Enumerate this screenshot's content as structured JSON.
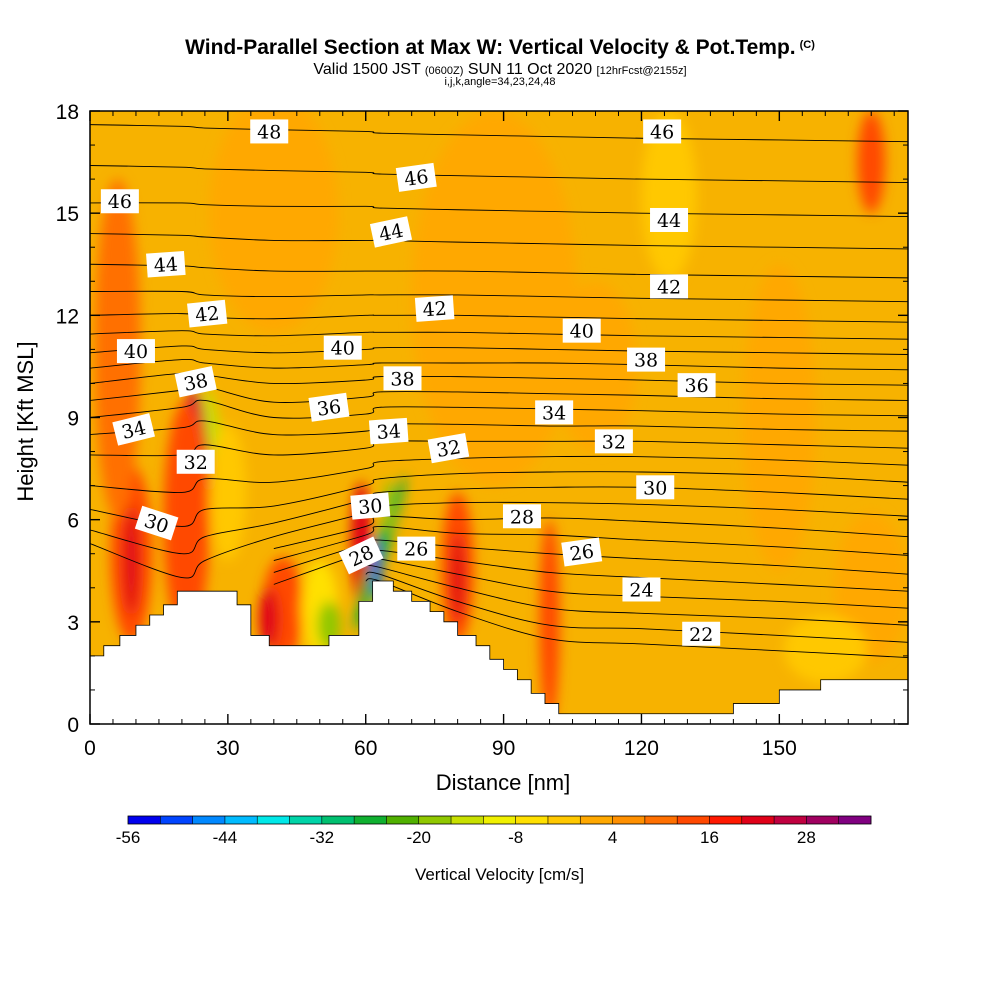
{
  "header": {
    "title": "Wind-Parallel Section at Max W: Vertical Velocity & Pot.Temp.",
    "title_units": "(C)",
    "valid_prefix": "Valid 1500 JST",
    "valid_utc": "(0600Z)",
    "valid_date": "SUN 11 Oct 2020",
    "valid_fcst": "[12hrFcst@2155z]",
    "params": "i,j,k,angle=34,23,24,48"
  },
  "chart_data": {
    "type": "heatmap",
    "xlabel": "Distance [nm]",
    "ylabel": "Height [Kft MSL]",
    "xlim": [
      0,
      178
    ],
    "ylim": [
      0,
      18
    ],
    "x_ticks": [
      0,
      30,
      60,
      90,
      120,
      150
    ],
    "y_ticks": [
      0,
      3,
      6,
      9,
      12,
      15,
      18
    ],
    "background_fill_color": "#f7b200",
    "colorbar": {
      "title": "Vertical Velocity [cm/s]",
      "min": -56,
      "max": 36,
      "step": 4,
      "tick_labels": [
        "-56",
        "-44",
        "-32",
        "-20",
        "-8",
        "4",
        "16",
        "28"
      ],
      "colors": [
        "#0000ee",
        "#0044ff",
        "#0088ff",
        "#00bbff",
        "#00e8e8",
        "#00d4a8",
        "#00c070",
        "#10b030",
        "#50b000",
        "#90c800",
        "#c8e000",
        "#f0f000",
        "#ffe000",
        "#ffc800",
        "#ffa800",
        "#ff9000",
        "#ff7000",
        "#ff4800",
        "#ff1800",
        "#e00018",
        "#c00040",
        "#a00060",
        "#800080"
      ]
    },
    "terrain": [
      [
        0,
        2
      ],
      [
        3,
        2
      ],
      [
        3,
        2.3
      ],
      [
        6.5,
        2.3
      ],
      [
        6.5,
        2.6
      ],
      [
        10,
        2.6
      ],
      [
        10,
        2.9
      ],
      [
        13,
        2.9
      ],
      [
        13,
        3.2
      ],
      [
        16,
        3.2
      ],
      [
        16,
        3.5
      ],
      [
        19,
        3.5
      ],
      [
        19,
        3.9
      ],
      [
        32,
        3.9
      ],
      [
        32,
        3.5
      ],
      [
        35,
        3.5
      ],
      [
        35,
        2.6
      ],
      [
        39,
        2.6
      ],
      [
        39,
        2.3
      ],
      [
        52,
        2.3
      ],
      [
        52,
        2.6
      ],
      [
        58.5,
        2.6
      ],
      [
        58.5,
        3.6
      ],
      [
        61.5,
        3.6
      ],
      [
        61.5,
        4.2
      ],
      [
        66,
        4.2
      ],
      [
        66,
        3.9
      ],
      [
        70,
        3.9
      ],
      [
        70,
        3.6
      ],
      [
        74,
        3.6
      ],
      [
        74,
        3.3
      ],
      [
        77,
        3.3
      ],
      [
        77,
        3
      ],
      [
        80,
        3
      ],
      [
        80,
        2.6
      ],
      [
        84,
        2.6
      ],
      [
        84,
        2.3
      ],
      [
        87,
        2.3
      ],
      [
        87,
        1.9
      ],
      [
        90,
        1.9
      ],
      [
        90,
        1.6
      ],
      [
        93,
        1.6
      ],
      [
        93,
        1.3
      ],
      [
        96,
        1.3
      ],
      [
        96,
        0.9
      ],
      [
        99,
        0.9
      ],
      [
        99,
        0.6
      ],
      [
        102,
        0.6
      ],
      [
        102,
        0.3
      ],
      [
        140,
        0.3
      ],
      [
        140,
        0.6
      ],
      [
        150,
        0.6
      ],
      [
        150,
        1
      ],
      [
        159,
        1
      ],
      [
        159,
        1.3
      ],
      [
        178,
        1.3
      ],
      [
        178,
        0
      ],
      [
        0,
        0
      ]
    ],
    "theta_contours": {
      "levels": [
        22,
        23,
        24,
        25,
        26,
        27,
        28,
        29,
        30,
        31,
        32,
        33,
        34,
        35,
        36,
        37,
        38,
        39,
        40,
        41,
        42,
        43,
        44,
        45,
        46,
        47,
        48
      ],
      "x": [
        0,
        20,
        25,
        40,
        60,
        63,
        80,
        100,
        120,
        150,
        178
      ],
      "heights": [
        [
          null,
          null,
          null,
          null,
          4.2,
          4.2,
          3.3,
          2.5,
          2.35,
          2.15,
          1.95
        ],
        [
          null,
          null,
          null,
          null,
          4.4,
          4.4,
          3.6,
          2.9,
          2.8,
          2.6,
          2.4
        ],
        [
          null,
          null,
          null,
          null,
          4.65,
          4.6,
          4.0,
          3.4,
          3.25,
          3.1,
          2.9
        ],
        [
          null,
          null,
          null,
          null,
          4.9,
          4.85,
          4.4,
          3.9,
          3.75,
          3.6,
          3.4
        ],
        [
          null,
          null,
          null,
          4.1,
          5.05,
          5.1,
          4.8,
          4.45,
          4.3,
          4.1,
          3.9
        ],
        [
          null,
          null,
          null,
          4.45,
          5.3,
          5.4,
          5.2,
          5.0,
          4.85,
          4.65,
          4.4
        ],
        [
          null,
          null,
          null,
          4.8,
          5.55,
          5.8,
          5.6,
          5.55,
          5.4,
          5.2,
          4.95
        ],
        [
          null,
          null,
          null,
          5.15,
          5.8,
          6.1,
          6.0,
          6.05,
          5.95,
          5.75,
          5.5
        ],
        [
          5.3,
          4.3,
          4.8,
          5.5,
          6.2,
          6.4,
          6.5,
          6.5,
          6.45,
          6.3,
          6.1
        ],
        [
          5.7,
          5.0,
          5.5,
          5.9,
          6.6,
          6.8,
          6.9,
          6.95,
          6.95,
          6.8,
          6.6
        ],
        [
          6.3,
          5.8,
          6.3,
          6.4,
          7.0,
          7.2,
          7.35,
          7.4,
          7.4,
          7.3,
          7.1
        ],
        [
          7.0,
          6.8,
          7.2,
          7.1,
          7.5,
          7.7,
          7.8,
          7.85,
          7.85,
          7.75,
          7.6
        ],
        [
          7.9,
          7.9,
          8.2,
          7.9,
          8.1,
          8.3,
          8.3,
          8.3,
          8.3,
          8.2,
          8.1
        ],
        [
          8.5,
          8.7,
          8.9,
          8.5,
          8.6,
          8.8,
          8.8,
          8.75,
          8.75,
          8.65,
          8.6
        ],
        [
          9.0,
          9.3,
          9.5,
          9.0,
          9.1,
          9.3,
          9.3,
          9.25,
          9.2,
          9.1,
          9.05
        ],
        [
          9.5,
          9.8,
          9.9,
          9.45,
          9.6,
          9.75,
          9.75,
          9.7,
          9.65,
          9.55,
          9.5
        ],
        [
          10.0,
          10.3,
          10.25,
          10.0,
          10.1,
          10.2,
          10.2,
          10.15,
          10.1,
          10.0,
          9.95
        ],
        [
          10.45,
          10.7,
          10.6,
          10.45,
          10.55,
          10.6,
          10.6,
          10.6,
          10.55,
          10.45,
          10.4
        ],
        [
          10.9,
          11.1,
          11.0,
          10.9,
          11.0,
          11.05,
          11.05,
          11.0,
          10.95,
          10.9,
          10.85
        ],
        [
          11.45,
          11.55,
          11.45,
          11.4,
          11.5,
          11.5,
          11.5,
          11.45,
          11.4,
          11.35,
          11.3
        ],
        [
          12.0,
          12.05,
          11.95,
          11.9,
          12.0,
          12.0,
          12.0,
          11.95,
          11.9,
          11.85,
          11.8
        ],
        [
          12.7,
          12.7,
          12.6,
          12.55,
          12.6,
          12.6,
          12.6,
          12.55,
          12.5,
          12.45,
          12.4
        ],
        [
          13.5,
          13.45,
          13.4,
          13.3,
          13.3,
          13.3,
          13.3,
          13.25,
          13.2,
          13.15,
          13.1
        ],
        [
          14.4,
          14.35,
          14.3,
          14.2,
          14.2,
          14.2,
          14.15,
          14.1,
          14.05,
          14.0,
          13.95
        ],
        [
          15.3,
          15.3,
          15.25,
          15.2,
          15.2,
          15.15,
          15.1,
          15.05,
          15.0,
          14.95,
          14.9
        ],
        [
          16.4,
          16.35,
          16.3,
          16.25,
          16.2,
          16.15,
          16.1,
          16.05,
          16.0,
          15.95,
          15.9
        ],
        [
          17.6,
          17.55,
          17.5,
          17.45,
          17.4,
          17.35,
          17.3,
          17.25,
          17.2,
          17.15,
          17.1
        ]
      ],
      "labels": [
        {
          "text": "48",
          "x": 39,
          "y": 17.4,
          "angle": 0
        },
        {
          "text": "46",
          "x": 71,
          "y": 16.05,
          "angle": -8
        },
        {
          "text": "46",
          "x": 124.5,
          "y": 17.4,
          "angle": 0
        },
        {
          "text": "46",
          "x": 6.5,
          "y": 15.35,
          "angle": 0
        },
        {
          "text": "44",
          "x": 65.5,
          "y": 14.45,
          "angle": -12
        },
        {
          "text": "44",
          "x": 126,
          "y": 14.8,
          "angle": 0
        },
        {
          "text": "44",
          "x": 16.5,
          "y": 13.5,
          "angle": -4
        },
        {
          "text": "42",
          "x": 25.5,
          "y": 12.05,
          "angle": -6
        },
        {
          "text": "42",
          "x": 75,
          "y": 12.2,
          "angle": -4
        },
        {
          "text": "42",
          "x": 126,
          "y": 12.85,
          "angle": 0
        },
        {
          "text": "40",
          "x": 10,
          "y": 10.95,
          "angle": 0
        },
        {
          "text": "40",
          "x": 55,
          "y": 11.05,
          "angle": 0
        },
        {
          "text": "40",
          "x": 107,
          "y": 11.55,
          "angle": 0
        },
        {
          "text": "38",
          "x": 23,
          "y": 10.05,
          "angle": -12
        },
        {
          "text": "38",
          "x": 68,
          "y": 10.15,
          "angle": 0
        },
        {
          "text": "38",
          "x": 121,
          "y": 10.7,
          "angle": 0
        },
        {
          "text": "36",
          "x": 52,
          "y": 9.3,
          "angle": -8
        },
        {
          "text": "36",
          "x": 132,
          "y": 9.95,
          "angle": 0
        },
        {
          "text": "34",
          "x": 9.5,
          "y": 8.65,
          "angle": -14
        },
        {
          "text": "34",
          "x": 65,
          "y": 8.6,
          "angle": -4
        },
        {
          "text": "34",
          "x": 101,
          "y": 9.15,
          "angle": 0
        },
        {
          "text": "32",
          "x": 23,
          "y": 7.7,
          "angle": 0
        },
        {
          "text": "32",
          "x": 78,
          "y": 8.1,
          "angle": -10
        },
        {
          "text": "32",
          "x": 114,
          "y": 8.3,
          "angle": 0
        },
        {
          "text": "30",
          "x": 14.5,
          "y": 5.9,
          "angle": 18
        },
        {
          "text": "30",
          "x": 61,
          "y": 6.4,
          "angle": -5
        },
        {
          "text": "30",
          "x": 123,
          "y": 6.95,
          "angle": 0
        },
        {
          "text": "28",
          "x": 59,
          "y": 4.95,
          "angle": -25
        },
        {
          "text": "28",
          "x": 94,
          "y": 6.1,
          "angle": 0
        },
        {
          "text": "26",
          "x": 71,
          "y": 5.15,
          "angle": 0
        },
        {
          "text": "26",
          "x": 107,
          "y": 5.05,
          "angle": -8
        },
        {
          "text": "24",
          "x": 120,
          "y": 3.95,
          "angle": 0
        },
        {
          "text": "22",
          "x": 133,
          "y": 2.65,
          "angle": 0
        }
      ]
    },
    "velocity_features": [
      {
        "cx": 23,
        "cy": 7.3,
        "rx": 2.2,
        "ry": 1.9,
        "value": 36,
        "rot": 0
      },
      {
        "cx": 22.5,
        "cy": 7.0,
        "rx": 3.5,
        "ry": 2.8,
        "value": 24,
        "rot": 0
      },
      {
        "cx": 21,
        "cy": 6.0,
        "rx": 5.0,
        "ry": 3.5,
        "value": 12,
        "rot": 0
      },
      {
        "cx": 9,
        "cy": 5.0,
        "rx": 4.5,
        "ry": 2.6,
        "value": 12,
        "rot": 0
      },
      {
        "cx": 9,
        "cy": 4.8,
        "rx": 1.8,
        "ry": 1.6,
        "value": 20,
        "rot": 0
      },
      {
        "cx": 27,
        "cy": 8.4,
        "rx": 1.6,
        "ry": 1.5,
        "value": -16,
        "rot": -8
      },
      {
        "cx": 30,
        "cy": 6.8,
        "rx": 4.0,
        "ry": 2.0,
        "value": -4,
        "rot": 0
      },
      {
        "cx": 42,
        "cy": 3.4,
        "rx": 4.5,
        "ry": 1.5,
        "value": 12,
        "rot": 0
      },
      {
        "cx": 39,
        "cy": 3.1,
        "rx": 2.2,
        "ry": 0.9,
        "value": 20,
        "rot": 0
      },
      {
        "cx": 50,
        "cy": 3.4,
        "rx": 4.0,
        "ry": 1.4,
        "value": -8,
        "rot": 0
      },
      {
        "cx": 52,
        "cy": 2.9,
        "rx": 2.5,
        "ry": 0.7,
        "value": -20,
        "rot": 0
      },
      {
        "cx": 59,
        "cy": 5.3,
        "rx": 2.2,
        "ry": 1.8,
        "value": 20,
        "rot": 0
      },
      {
        "cx": 63,
        "cy": 5.0,
        "rx": 1.5,
        "ry": 2.4,
        "value": -28,
        "rot": 18
      },
      {
        "cx": 62.5,
        "cy": 4.6,
        "rx": 0.9,
        "ry": 0.9,
        "value": -52,
        "rot": 0
      },
      {
        "cx": 65,
        "cy": 6.4,
        "rx": 1.0,
        "ry": 0.8,
        "value": -20,
        "rot": 0
      },
      {
        "cx": 80,
        "cy": 4.6,
        "rx": 3.5,
        "ry": 2.2,
        "value": 12,
        "rot": 0
      },
      {
        "cx": 80,
        "cy": 4.3,
        "rx": 1.5,
        "ry": 1.3,
        "value": 20,
        "rot": 0
      },
      {
        "cx": 100,
        "cy": 3.0,
        "rx": 2.2,
        "ry": 3.0,
        "value": 12,
        "rot": 0
      },
      {
        "cx": 88,
        "cy": 12.5,
        "rx": 18,
        "ry": 5.5,
        "value": 0,
        "rot": 0
      },
      {
        "cx": 40,
        "cy": 15.0,
        "rx": 14,
        "ry": 3.5,
        "value": 0,
        "rot": 0
      },
      {
        "cx": 126,
        "cy": 15.5,
        "rx": 6,
        "ry": 2.5,
        "value": -4,
        "rot": 0
      },
      {
        "cx": 150,
        "cy": 9.0,
        "rx": 8,
        "ry": 4.5,
        "value": 0,
        "rot": 0
      },
      {
        "cx": 170,
        "cy": 4.0,
        "rx": 8,
        "ry": 2.2,
        "value": 0,
        "rot": 0
      },
      {
        "cx": 160,
        "cy": 2.2,
        "rx": 9,
        "ry": 1.0,
        "value": -4,
        "rot": 0
      },
      {
        "cx": 170,
        "cy": 16.5,
        "rx": 3,
        "ry": 1.5,
        "value": 12,
        "rot": 0
      },
      {
        "cx": 6,
        "cy": 11.0,
        "rx": 5,
        "ry": 5,
        "value": 8,
        "rot": 0
      },
      {
        "cx": 110,
        "cy": 10.5,
        "rx": 9,
        "ry": 2.5,
        "value": 0,
        "rot": 0
      }
    ]
  }
}
